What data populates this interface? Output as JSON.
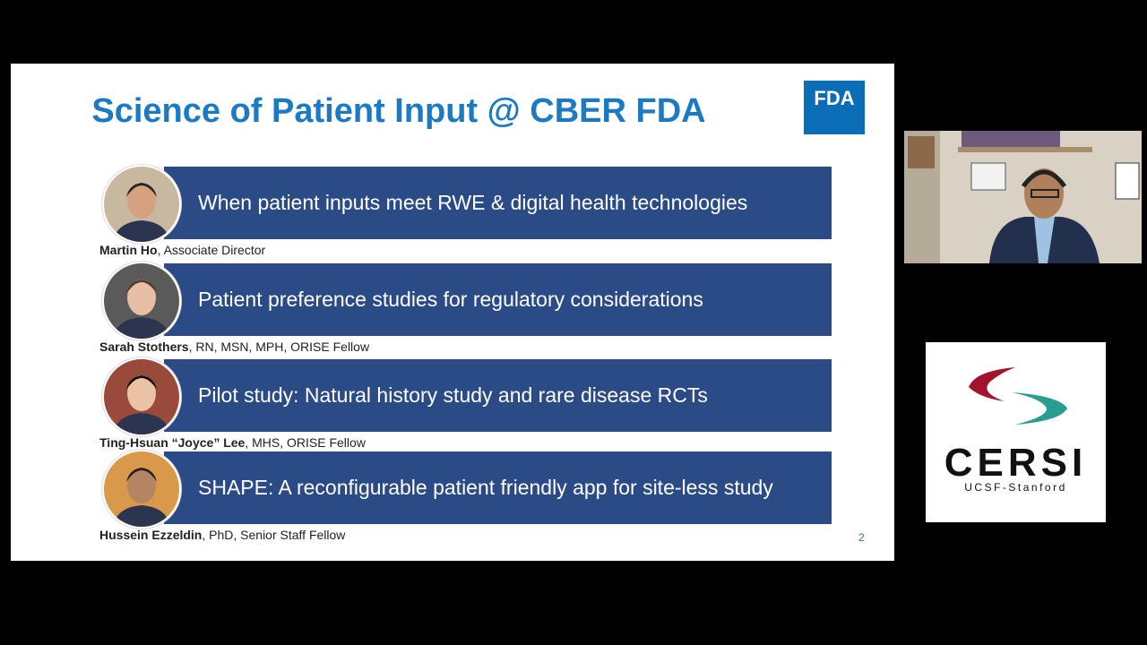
{
  "slide": {
    "title": "Science of Patient Input @ CBER FDA",
    "logo": "FDA",
    "page_number": "2",
    "items": [
      {
        "topic": "When patient inputs meet RWE & digital health technologies",
        "name": "Martin Ho",
        "role": ", Associate Director"
      },
      {
        "topic": "Patient preference studies for regulatory considerations",
        "name": "Sarah Stothers",
        "role": ", RN, MSN, MPH, ORISE Fellow"
      },
      {
        "topic": "Pilot study: Natural history study and rare disease RCTs",
        "name": "Ting-Hsuan “Joyce” Lee",
        "role": ", MHS, ORISE Fellow"
      },
      {
        "topic": "SHAPE: A reconfigurable patient friendly app for site-less study",
        "name": "Hussein Ezzeldin",
        "role": ", PhD, Senior Staff Fellow"
      }
    ]
  },
  "sidebar": {
    "logo_title": "CERSI",
    "logo_subtitle": "UCSF-Stanford"
  }
}
